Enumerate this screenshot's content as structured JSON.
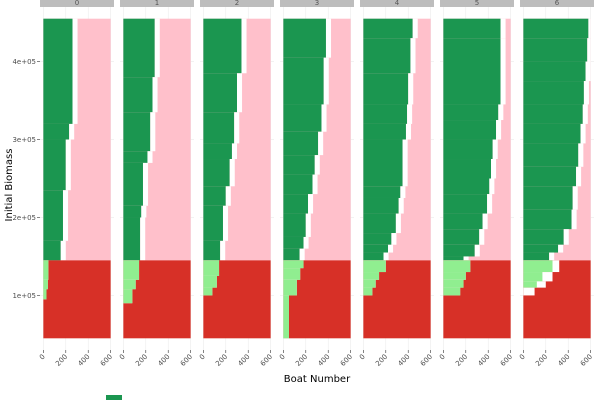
{
  "chart_data": {
    "type": "heatmap",
    "title": "",
    "xlabel": "Boat Number",
    "ylabel": "Initial Biomass",
    "xlim": [
      -30,
      630
    ],
    "ylim": [
      30000,
      470000
    ],
    "x_ticks": [
      0,
      200,
      400,
      600
    ],
    "x_tick_labels": [
      "0",
      "200",
      "400",
      "600"
    ],
    "y_ticks": [
      100000,
      200000,
      300000,
      400000
    ],
    "y_tick_labels": [
      "1e+05",
      "2e+05",
      "3e+05",
      "4e+05"
    ],
    "x_max": 600,
    "y_min": 45000,
    "y_max": 455000,
    "threshold_y": 145000,
    "colors": {
      "dark_green": "#1b9650",
      "light_green": "#90ee90",
      "red": "#d73027",
      "pink": "#ffc0cb",
      "white": "#ffffff",
      "panel_bg": "#ffffff",
      "grid": "#ebebeb",
      "strip": "#bdbdbd"
    },
    "legend": {
      "position": "bottom",
      "entries": [
        {
          "color": "#1b9650",
          "label": ""
        }
      ]
    },
    "facets": [
      {
        "label": "0",
        "upper": [
          [
            455000,
            260
          ],
          [
            320000,
            230
          ],
          [
            300000,
            200
          ],
          [
            235000,
            175
          ],
          [
            170000,
            155
          ]
        ],
        "lower": [
          [
            145000,
            45,
            45
          ],
          [
            120000,
            40,
            40
          ],
          [
            108000,
            28,
            28
          ],
          [
            95000,
            0,
            0
          ]
        ]
      },
      {
        "label": "1",
        "upper": [
          [
            455000,
            280
          ],
          [
            380000,
            260
          ],
          [
            335000,
            240
          ],
          [
            285000,
            215
          ],
          [
            270000,
            175
          ],
          [
            215000,
            160
          ],
          [
            200000,
            150
          ]
        ],
        "lower": [
          [
            145000,
            140,
            140
          ],
          [
            120000,
            110,
            110
          ],
          [
            108000,
            80,
            80
          ],
          [
            90000,
            0,
            0
          ]
        ]
      },
      {
        "label": "2",
        "upper": [
          [
            455000,
            340
          ],
          [
            385000,
            300
          ],
          [
            335000,
            275
          ],
          [
            295000,
            255
          ],
          [
            275000,
            235
          ],
          [
            240000,
            200
          ],
          [
            215000,
            175
          ],
          [
            170000,
            150
          ]
        ],
        "lower": [
          [
            145000,
            140,
            140
          ],
          [
            125000,
            120,
            120
          ],
          [
            110000,
            80,
            80
          ],
          [
            100000,
            0,
            0
          ]
        ]
      },
      {
        "label": "3",
        "upper": [
          [
            455000,
            380
          ],
          [
            405000,
            360
          ],
          [
            345000,
            340
          ],
          [
            310000,
            310
          ],
          [
            280000,
            280
          ],
          [
            255000,
            260
          ],
          [
            230000,
            220
          ],
          [
            205000,
            200
          ],
          [
            175000,
            180
          ],
          [
            160000,
            145
          ]
        ],
        "lower": [
          [
            145000,
            180,
            180
          ],
          [
            135000,
            150,
            150
          ],
          [
            120000,
            120,
            120
          ],
          [
            100000,
            50,
            50
          ]
        ]
      },
      {
        "label": "4",
        "upper": [
          [
            455000,
            440
          ],
          [
            430000,
            420
          ],
          [
            385000,
            400
          ],
          [
            345000,
            390
          ],
          [
            320000,
            380
          ],
          [
            300000,
            350
          ],
          [
            240000,
            330
          ],
          [
            225000,
            315
          ],
          [
            205000,
            290
          ],
          [
            180000,
            250
          ],
          [
            165000,
            220
          ],
          [
            155000,
            180
          ]
        ],
        "lower": [
          [
            145000,
            200,
            200
          ],
          [
            130000,
            140,
            140
          ],
          [
            120000,
            110,
            110
          ],
          [
            110000,
            80,
            80
          ],
          [
            100000,
            0,
            0
          ]
        ]
      },
      {
        "label": "5",
        "upper": [
          [
            455000,
            510
          ],
          [
            430000,
            510
          ],
          [
            345000,
            490
          ],
          [
            325000,
            470
          ],
          [
            300000,
            440
          ],
          [
            275000,
            425
          ],
          [
            250000,
            410
          ],
          [
            230000,
            390
          ],
          [
            205000,
            350
          ],
          [
            185000,
            320
          ],
          [
            165000,
            280
          ],
          [
            150000,
            180
          ]
        ],
        "lower": [
          [
            145000,
            240,
            240
          ],
          [
            130000,
            200,
            200
          ],
          [
            120000,
            180,
            180
          ],
          [
            110000,
            150,
            150
          ],
          [
            100000,
            0,
            0
          ]
        ]
      },
      {
        "label": "6",
        "upper": [
          [
            455000,
            580
          ],
          [
            430000,
            570
          ],
          [
            400000,
            555
          ],
          [
            375000,
            540
          ],
          [
            345000,
            530
          ],
          [
            320000,
            510
          ],
          [
            295000,
            490
          ],
          [
            265000,
            470
          ],
          [
            240000,
            440
          ],
          [
            210000,
            430
          ],
          [
            185000,
            360
          ],
          [
            165000,
            310
          ],
          [
            155000,
            230
          ]
        ],
        "lower": [
          [
            145000,
            320,
            260
          ],
          [
            130000,
            260,
            170
          ],
          [
            118000,
            200,
            120
          ],
          [
            110000,
            100,
            0
          ],
          [
            100000,
            0,
            0
          ]
        ]
      }
    ]
  }
}
